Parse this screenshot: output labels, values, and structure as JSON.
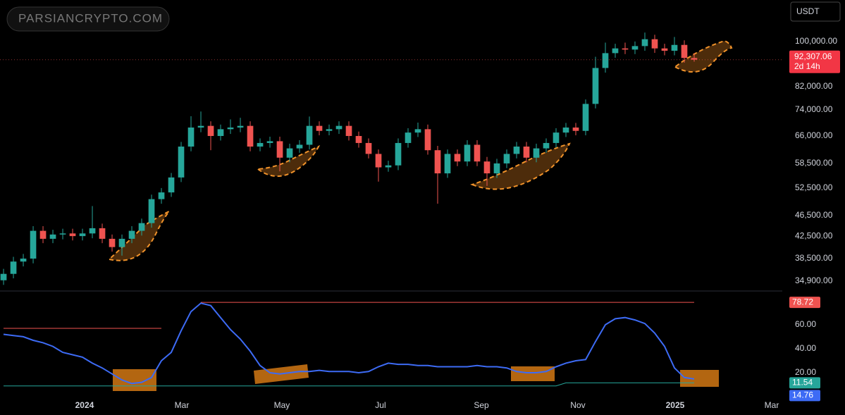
{
  "watermark": "PARSIANCRYPTO.COM",
  "currency": "USDT",
  "chart_data": [
    {
      "type": "candlestick",
      "price_label": "92,307.06",
      "countdown": "2d 14h",
      "up_color": "#26a69a",
      "down_color": "#ef5350",
      "log_scale": true,
      "grid": false,
      "open": [
        35000,
        36000,
        38000,
        38500,
        43500,
        42000,
        42800,
        43000,
        42500,
        43000,
        44000,
        42000,
        40500,
        42000,
        43500,
        45000,
        50000,
        51500,
        55000,
        63000,
        68500,
        69000,
        66000,
        68000,
        68500,
        69000,
        63000,
        64000,
        64500,
        60000,
        62500,
        63500,
        69000,
        67500,
        68000,
        69000,
        66000,
        64000,
        61000,
        57500,
        58000,
        64000,
        67000,
        68000,
        62000,
        56000,
        61000,
        59000,
        63500,
        59000,
        56000,
        58500,
        61000,
        63000,
        60000,
        62500,
        64000,
        67000,
        68500,
        67500,
        76000,
        89000,
        95000,
        97000,
        96500,
        98000,
        101000,
        97000,
        96000,
        98500,
        93000
      ],
      "high": [
        36800,
        38800,
        39300,
        44400,
        44400,
        43700,
        43900,
        43900,
        43900,
        48500,
        44900,
        42800,
        42800,
        44400,
        45900,
        51000,
        52500,
        56100,
        64300,
        72000,
        73500,
        70400,
        69400,
        71000,
        71500,
        70400,
        65300,
        65800,
        65800,
        63800,
        64800,
        71900,
        70400,
        69400,
        70400,
        70400,
        67300,
        65300,
        62200,
        59200,
        65300,
        68300,
        70000,
        69400,
        63200,
        62200,
        62200,
        64800,
        64800,
        60200,
        59700,
        62200,
        64300,
        64300,
        63800,
        65300,
        68300,
        69900,
        69900,
        77500,
        93500,
        99500,
        99000,
        99500,
        100000,
        104000,
        103000,
        99000,
        102000,
        100500,
        95000
      ],
      "low": [
        34300,
        35300,
        37200,
        37700,
        41200,
        41200,
        41900,
        41700,
        41700,
        42100,
        41200,
        39700,
        39000,
        41200,
        42600,
        44100,
        49000,
        50500,
        53900,
        61700,
        67100,
        62000,
        64700,
        66600,
        67100,
        61700,
        61700,
        62700,
        56500,
        58800,
        61300,
        62200,
        66200,
        66200,
        66600,
        64700,
        62700,
        59800,
        54000,
        56400,
        56800,
        62700,
        65700,
        60800,
        49000,
        54900,
        57800,
        57800,
        57800,
        53000,
        54900,
        57300,
        59800,
        58800,
        58800,
        61300,
        62700,
        65700,
        66200,
        66200,
        74500,
        87200,
        93100,
        94600,
        94600,
        96000,
        95100,
        94100,
        94100,
        91100,
        91500
      ],
      "close": [
        36000,
        38000,
        38500,
        43500,
        42000,
        42800,
        43000,
        42500,
        43000,
        44000,
        42000,
        40500,
        42000,
        43500,
        45000,
        50000,
        51500,
        55000,
        63000,
        68500,
        69000,
        66000,
        68000,
        68500,
        69000,
        63000,
        64000,
        64500,
        60000,
        62500,
        63500,
        69000,
        67500,
        68000,
        69000,
        66000,
        64000,
        61000,
        57500,
        58000,
        64000,
        67000,
        68000,
        62000,
        56000,
        61000,
        59000,
        63500,
        59000,
        56000,
        58500,
        61000,
        63000,
        60000,
        62500,
        64000,
        67000,
        68500,
        67500,
        76000,
        89000,
        95000,
        97000,
        96500,
        98000,
        101000,
        97000,
        96000,
        98500,
        93000,
        92307.06
      ],
      "ylim": [
        33700,
        120000
      ],
      "yticks": [
        {
          "value": 34900,
          "label": "34,900.00"
        },
        {
          "value": 38500,
          "label": "38,500.00"
        },
        {
          "value": 42500,
          "label": "42,500.00"
        },
        {
          "value": 46500,
          "label": "46,500.00"
        },
        {
          "value": 52500,
          "label": "52,500.00"
        },
        {
          "value": 58500,
          "label": "58,500.00"
        },
        {
          "value": 66000,
          "label": "66,000.00"
        },
        {
          "value": 74000,
          "label": "74,000.00"
        },
        {
          "value": 82000,
          "label": "82,000.00"
        },
        {
          "value": 100000,
          "label": "100,000.00"
        }
      ],
      "xlim": [
        -0.36,
        78.93
      ],
      "xticks": [
        {
          "value": 8.21,
          "label": "2024"
        },
        {
          "value": 18.07,
          "label": "Mar"
        },
        {
          "value": 28.21,
          "label": "May"
        },
        {
          "value": 38.21,
          "label": "Jul"
        },
        {
          "value": 48.43,
          "label": "Sep"
        },
        {
          "value": 58.21,
          "label": "Nov"
        },
        {
          "value": 68.07,
          "label": "2025"
        },
        {
          "value": 77.86,
          "label": "Mar"
        }
      ]
    },
    {
      "type": "line",
      "grid": false,
      "series": [
        {
          "color": "#ef5350",
          "values": [
            57,
            57,
            57,
            57,
            57,
            57,
            57,
            57,
            57,
            57,
            57,
            57,
            57,
            57,
            57,
            57,
            57,
            null,
            null,
            null,
            78.72,
            78.72,
            78.72,
            78.72,
            78.72,
            78.72,
            78.72,
            78.72,
            78.72,
            78.72,
            78.72,
            78.72,
            78.72,
            78.72,
            78.72,
            78.72,
            78.72,
            78.72,
            78.72,
            78.72,
            78.72,
            78.72,
            78.72,
            78.72,
            78.72,
            78.72,
            78.72,
            78.72,
            78.72,
            78.72,
            78.72,
            78.72,
            78.72,
            78.72,
            78.72,
            78.72,
            78.72,
            78.72,
            78.72,
            78.72,
            78.72,
            78.72,
            78.72,
            78.72,
            78.72,
            78.72,
            78.72,
            78.72,
            78.72,
            78.72,
            78.72
          ]
        },
        {
          "color": "#26a69a",
          "values": [
            9,
            9,
            9,
            9,
            9,
            9,
            9,
            9,
            9,
            9,
            9,
            9,
            9,
            9,
            9,
            9,
            9,
            9,
            9,
            9,
            9,
            9,
            9,
            9,
            9,
            9,
            9,
            9,
            9,
            9,
            9,
            9,
            9,
            9,
            9,
            9,
            9,
            9,
            9,
            9,
            9,
            9,
            9,
            9,
            9,
            9,
            9,
            9,
            9,
            9,
            9,
            9,
            9,
            9,
            9,
            9,
            9,
            11.54,
            11.54,
            11.54,
            11.54,
            11.54,
            11.54,
            11.54,
            11.54,
            11.54,
            11.54,
            11.54,
            11.54,
            11.54,
            11.54
          ]
        },
        {
          "color": "#3d6bf5",
          "values": [
            52,
            51,
            50,
            47,
            45,
            42,
            37,
            35,
            33,
            28,
            24,
            19,
            14,
            11,
            12,
            16,
            30,
            37,
            55,
            71,
            78,
            76,
            66,
            56,
            48,
            38,
            26,
            20,
            19,
            20,
            21,
            21,
            22,
            21,
            21,
            21,
            20,
            21,
            25,
            28,
            27,
            27,
            26,
            26,
            25,
            25,
            25,
            25,
            26,
            25,
            25,
            24,
            21,
            20,
            20,
            21,
            25,
            28,
            30,
            31,
            46,
            60,
            65,
            66,
            64,
            61,
            53,
            42,
            24,
            16,
            14.76
          ]
        }
      ],
      "ylim": [
        0,
        87
      ],
      "yticks": [
        {
          "value": 20,
          "label": "20.00"
        },
        {
          "value": 40,
          "label": "40.00"
        },
        {
          "value": 60,
          "label": "60.00"
        }
      ]
    }
  ]
}
